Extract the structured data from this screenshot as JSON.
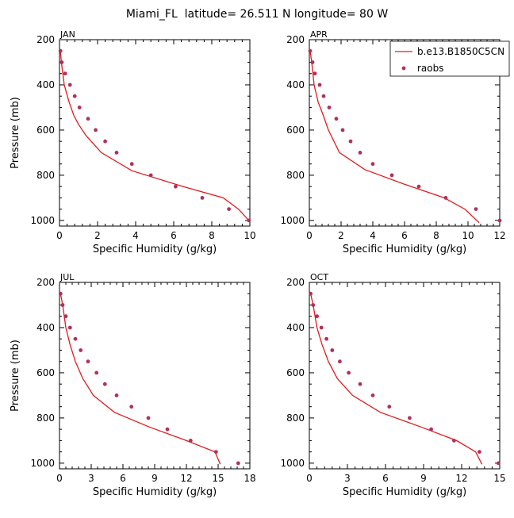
{
  "figure_title": "Miami_FL  latitude= 26.511 N longitude= 80 W",
  "chart_data": [
    {
      "type": "line",
      "panel": "JAN",
      "xlabel": "Specific Humidity (g/kg)",
      "ylabel": "Pressure (mb)",
      "xlim": [
        0,
        10
      ],
      "ylim": [
        200,
        1025
      ],
      "y_inverted": true,
      "xticks": [
        0,
        2,
        4,
        6,
        8,
        10
      ],
      "yticks": [
        200,
        400,
        600,
        800,
        1000
      ],
      "series": [
        {
          "name": "b.e13.B1850C5CN",
          "style": "line",
          "color": "#e41a1c",
          "x": [
            0.05,
            0.1,
            0.25,
            0.5,
            0.75,
            1.0,
            1.4,
            2.2,
            3.8,
            6.5,
            8.6,
            9.4,
            10.0
          ],
          "y": [
            250,
            300,
            400,
            475,
            535,
            575,
            625,
            700,
            780,
            850,
            900,
            950,
            1005
          ]
        },
        {
          "name": "raobs",
          "style": "points",
          "color": "#b0305c",
          "x": [
            0.05,
            0.12,
            0.3,
            0.55,
            0.8,
            1.05,
            1.5,
            1.9,
            2.4,
            3.0,
            3.8,
            4.8,
            6.1,
            7.5,
            8.9,
            9.95
          ],
          "y": [
            250,
            300,
            350,
            400,
            450,
            500,
            550,
            600,
            650,
            700,
            750,
            800,
            850,
            900,
            950,
            1000
          ]
        }
      ]
    },
    {
      "type": "line",
      "panel": "APR",
      "xlabel": "Specific Humidity (g/kg)",
      "ylabel": "",
      "xlim": [
        0,
        12
      ],
      "ylim": [
        200,
        1025
      ],
      "y_inverted": true,
      "xticks": [
        0,
        2,
        4,
        6,
        8,
        10,
        12
      ],
      "yticks": [
        200,
        400,
        600,
        800,
        1000
      ],
      "series": [
        {
          "name": "b.e13.B1850C5CN",
          "style": "line",
          "color": "#e41a1c",
          "x": [
            0.05,
            0.15,
            0.3,
            0.55,
            0.85,
            1.2,
            1.9,
            3.5,
            6.0,
            8.5,
            9.8,
            10.7
          ],
          "y": [
            250,
            300,
            400,
            475,
            530,
            600,
            700,
            775,
            840,
            900,
            950,
            1010
          ]
        },
        {
          "name": "raobs",
          "style": "points",
          "color": "#b0305c",
          "x": [
            0.05,
            0.2,
            0.35,
            0.65,
            0.9,
            1.25,
            1.7,
            2.1,
            2.6,
            3.2,
            4.0,
            5.2,
            6.9,
            8.6,
            10.5,
            12.0
          ],
          "y": [
            250,
            300,
            350,
            400,
            450,
            500,
            550,
            600,
            650,
            700,
            750,
            800,
            850,
            900,
            950,
            1000
          ]
        }
      ]
    },
    {
      "type": "line",
      "panel": "JUL",
      "xlabel": "Specific Humidity (g/kg)",
      "ylabel": "Pressure (mb)",
      "xlim": [
        0,
        18
      ],
      "ylim": [
        200,
        1025
      ],
      "y_inverted": true,
      "xticks": [
        0,
        3,
        6,
        9,
        12,
        15,
        18
      ],
      "yticks": [
        200,
        400,
        600,
        800,
        1000
      ],
      "series": [
        {
          "name": "b.e13.B1850C5CN",
          "style": "line",
          "color": "#e41a1c",
          "x": [
            0.1,
            0.3,
            0.6,
            1.0,
            1.5,
            2.2,
            3.2,
            5.2,
            8.5,
            12.0,
            14.7,
            15.2
          ],
          "y": [
            250,
            300,
            400,
            475,
            550,
            625,
            700,
            775,
            840,
            900,
            950,
            1005
          ]
        },
        {
          "name": "raobs",
          "style": "points",
          "color": "#b0305c",
          "x": [
            0.1,
            0.3,
            0.6,
            1.0,
            1.5,
            2.0,
            2.7,
            3.5,
            4.3,
            5.4,
            6.8,
            8.4,
            10.2,
            12.4,
            14.8,
            16.9
          ],
          "y": [
            250,
            300,
            350,
            400,
            450,
            500,
            550,
            600,
            650,
            700,
            750,
            800,
            850,
            900,
            950,
            1000
          ]
        }
      ]
    },
    {
      "type": "line",
      "panel": "OCT",
      "xlabel": "Specific Humidity (g/kg)",
      "ylabel": "",
      "xlim": [
        0,
        15
      ],
      "ylim": [
        200,
        1025
      ],
      "y_inverted": true,
      "xticks": [
        0,
        3,
        6,
        9,
        12,
        15
      ],
      "yticks": [
        200,
        400,
        600,
        800,
        1000
      ],
      "series": [
        {
          "name": "b.e13.B1850C5CN",
          "style": "line",
          "color": "#e41a1c",
          "x": [
            0.1,
            0.3,
            0.6,
            1.0,
            1.5,
            2.2,
            3.4,
            5.6,
            8.8,
            11.6,
            13.1,
            13.6
          ],
          "y": [
            250,
            300,
            400,
            475,
            550,
            625,
            700,
            775,
            840,
            900,
            950,
            1005
          ]
        },
        {
          "name": "raobs",
          "style": "points",
          "color": "#b0305c",
          "x": [
            0.1,
            0.3,
            0.6,
            0.95,
            1.35,
            1.8,
            2.4,
            3.1,
            4.0,
            5.0,
            6.3,
            7.9,
            9.6,
            11.4,
            13.4,
            14.9
          ],
          "y": [
            250,
            300,
            350,
            400,
            450,
            500,
            550,
            600,
            650,
            700,
            750,
            800,
            850,
            900,
            950,
            1000
          ]
        }
      ]
    }
  ],
  "legend": {
    "placement": "top-right of APR panel",
    "entries": [
      {
        "label": "b.e13.B1850C5CN",
        "marker": "line",
        "color": "#e41a1c"
      },
      {
        "label": "raobs",
        "marker": "dot",
        "color": "#b0305c"
      }
    ]
  }
}
